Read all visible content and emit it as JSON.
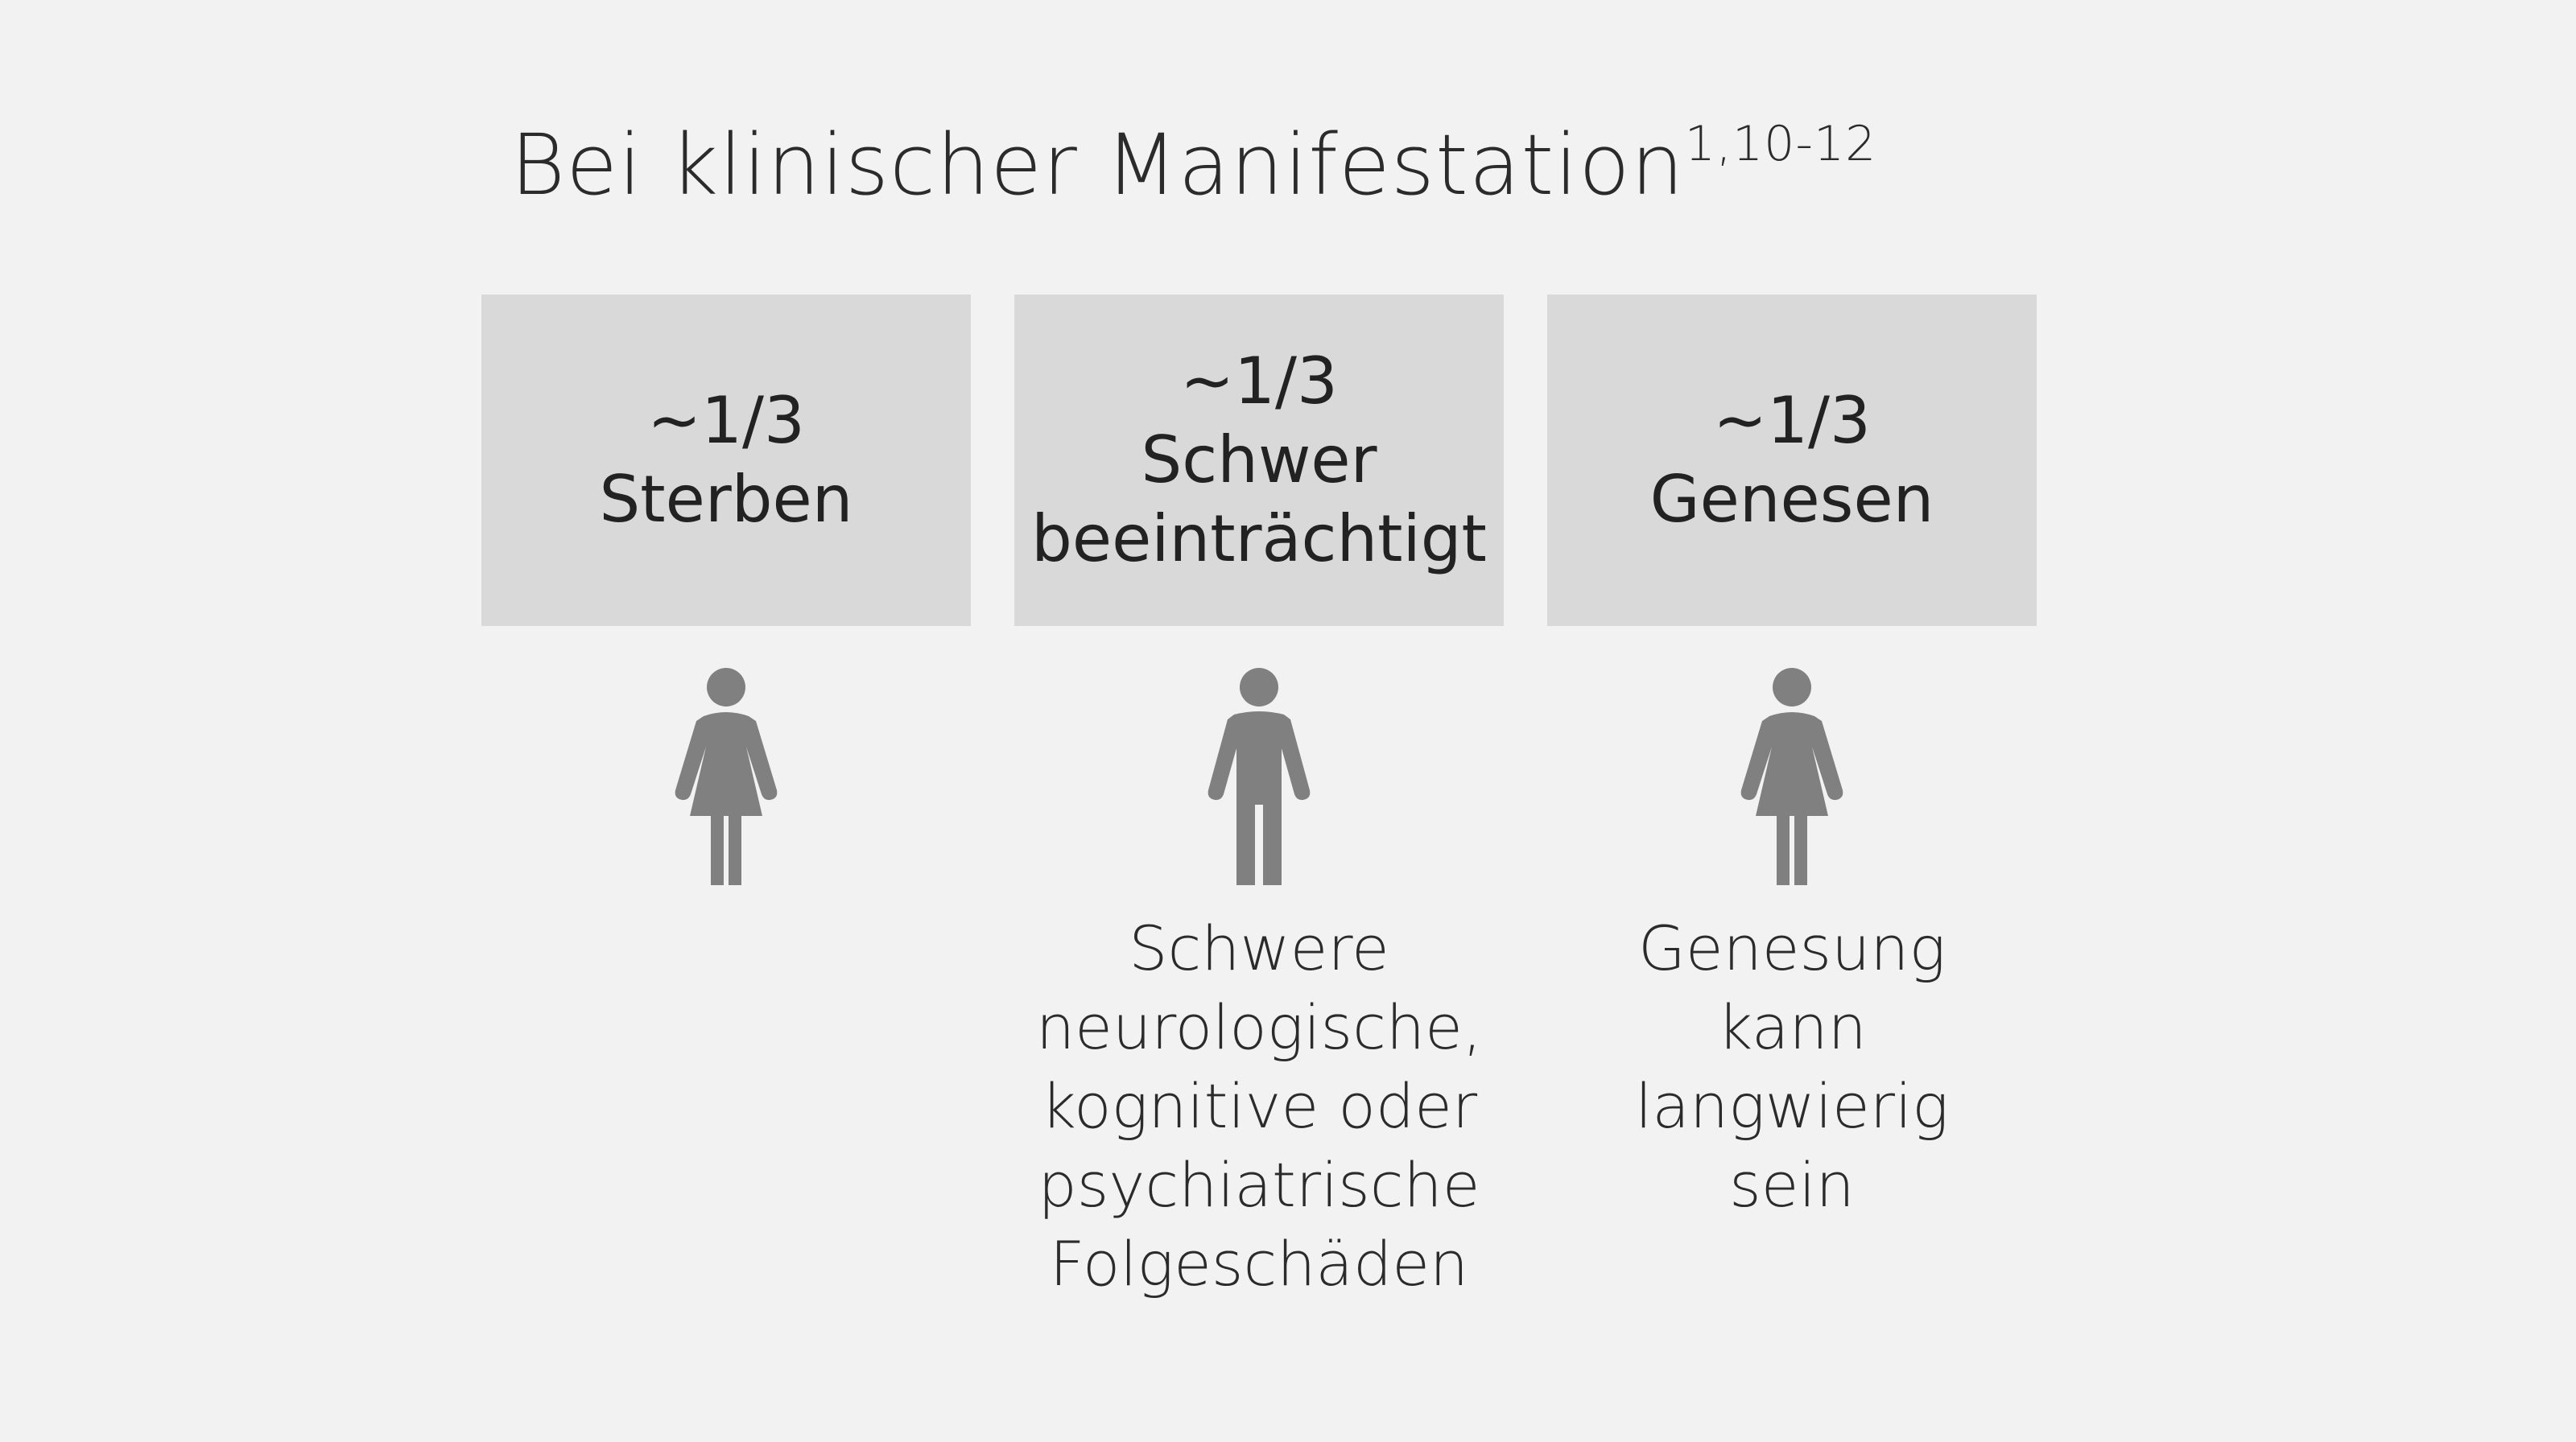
{
  "title": {
    "text": "Bei klinischer Manifestation",
    "superscript": "1,10-12"
  },
  "outcomes": [
    {
      "fraction": "~1/3",
      "label": "Sterben",
      "icon": "person-female-icon",
      "description": ""
    },
    {
      "fraction": "~1/3",
      "label": "Schwer\nbeeinträchtigt",
      "icon": "person-male-icon",
      "description": "Schwere\nneurologische,\nkognitive oder\npsychiatrische\nFolgeschäden"
    },
    {
      "fraction": "~1/3",
      "label": "Genesen",
      "icon": "person-female-icon",
      "description": "Genesung\nkann\nlangwierig\nsein"
    }
  ],
  "colors": {
    "background": "#f2f2f2",
    "box": "#d9d9d9",
    "icon": "#808080",
    "text": "#2b2b2b"
  }
}
